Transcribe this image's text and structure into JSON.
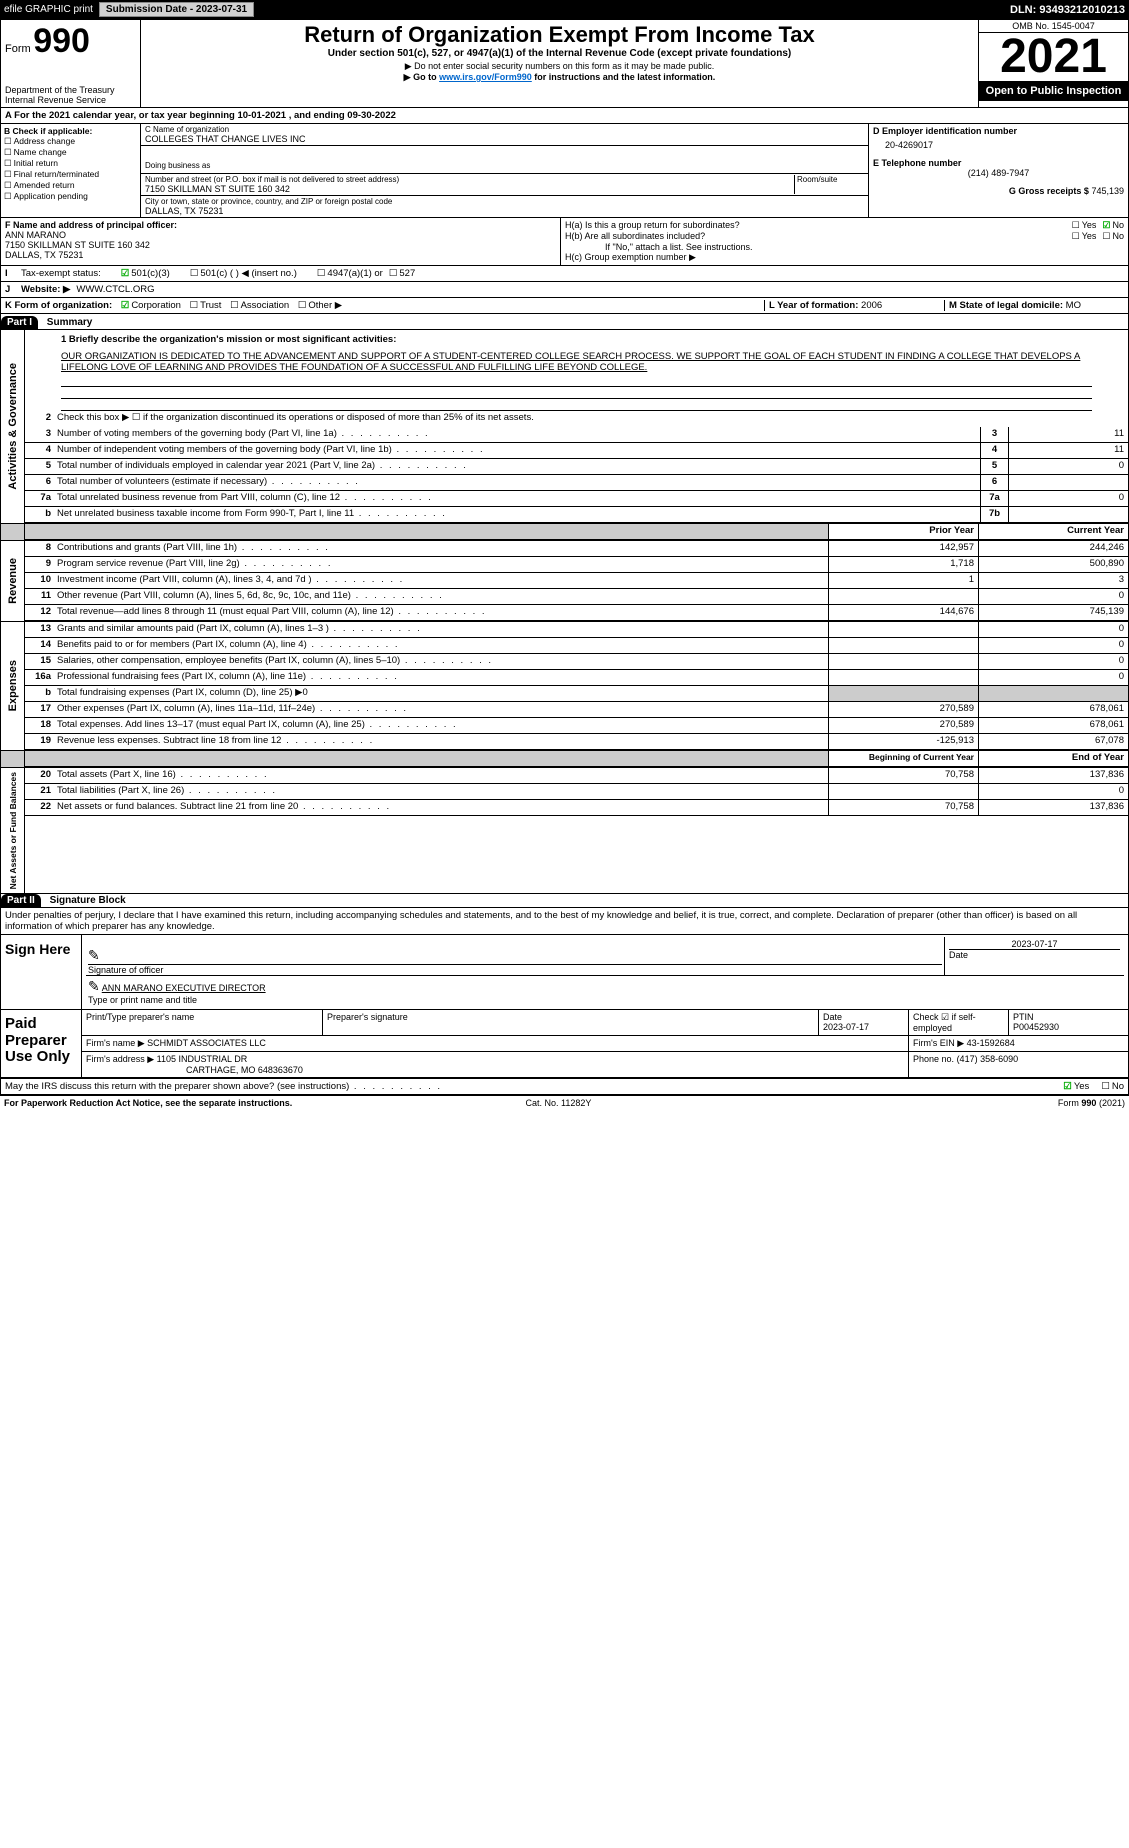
{
  "topbar": {
    "efile": "efile GRAPHIC print",
    "submit": "Submission Date - 2023-07-31",
    "dln": "DLN: 93493212010213"
  },
  "head": {
    "form": "990",
    "formprefix": "Form",
    "title": "Return of Organization Exempt From Income Tax",
    "sub1": "Under section 501(c), 527, or 4947(a)(1) of the Internal Revenue Code (except private foundations)",
    "sub2": "▶ Do not enter social security numbers on this form as it may be made public.",
    "sub3": "▶ Go to www.irs.gov/Form990 for instructions and the latest information.",
    "link": "www.irs.gov/Form990",
    "dept": "Department of the Treasury",
    "irs": "Internal Revenue Service",
    "omb": "OMB No. 1545-0047",
    "year": "2021",
    "open": "Open to Public Inspection"
  },
  "A": {
    "text": "For the 2021 calendar year, or tax year beginning 10-01-2021    , and ending 09-30-2022"
  },
  "B": {
    "hdr": "B Check if applicable:",
    "items": [
      "Address change",
      "Name change",
      "Initial return",
      "Final return/terminated",
      "Amended return",
      "Application pending"
    ]
  },
  "C": {
    "namehdr": "C Name of organization",
    "name": "COLLEGES THAT CHANGE LIVES INC",
    "dba": "Doing business as",
    "streethdr": "Number and street (or P.O. box if mail is not delivered to street address)",
    "room": "Room/suite",
    "street": "7150 SKILLMAN ST SUITE 160 342",
    "cityhdr": "City or town, state or province, country, and ZIP or foreign postal code",
    "city": "DALLAS, TX  75231"
  },
  "D": {
    "hdr": "D Employer identification number",
    "val": "20-4269017"
  },
  "E": {
    "hdr": "E Telephone number",
    "val": "(214) 489-7947"
  },
  "G": {
    "hdr": "G Gross receipts $",
    "val": "745,139"
  },
  "F": {
    "hdr": "F  Name and address of principal officer:",
    "name": "ANN MARANO",
    "street": "7150 SKILLMAN ST SUITE 160 342",
    "city": "DALLAS, TX  75231"
  },
  "H": {
    "a": "H(a)  Is this a group return for subordinates?",
    "ayes": "Yes",
    "ano": "No",
    "b": "H(b)  Are all subordinates included?",
    "bnote": "If \"No,\" attach a list. See instructions.",
    "c": "H(c)  Group exemption number ▶"
  },
  "I": {
    "hdr": "Tax-exempt status:",
    "o1": "501(c)(3)",
    "o2": "501(c) (  ) ◀ (insert no.)",
    "o3": "4947(a)(1) or",
    "o4": "527"
  },
  "J": {
    "hdr": "Website: ▶",
    "val": "WWW.CTCL.ORG"
  },
  "K": {
    "hdr": "K Form of organization:",
    "o1": "Corporation",
    "o2": "Trust",
    "o3": "Association",
    "o4": "Other ▶"
  },
  "L": {
    "hdr": "L Year of formation:",
    "val": "2006"
  },
  "M": {
    "hdr": "M State of legal domicile:",
    "val": "MO"
  },
  "partI": {
    "num": "Part I",
    "title": "Summary"
  },
  "mission": {
    "q": "1  Briefly describe the organization's mission or most significant activities:",
    "text": "OUR ORGANIZATION IS DEDICATED TO THE ADVANCEMENT AND SUPPORT OF A STUDENT-CENTERED COLLEGE SEARCH PROCESS. WE SUPPORT THE GOAL OF EACH STUDENT IN FINDING A COLLEGE THAT DEVELOPS A LIFELONG LOVE OF LEARNING AND PROVIDES THE FOUNDATION OF A SUCCESSFUL AND FULFILLING LIFE BEYOND COLLEGE."
  },
  "gov": {
    "side": "Activities & Governance",
    "l2": "Check this box ▶ ☐  if the organization discontinued its operations or disposed of more than 25% of its net assets.",
    "rows": [
      {
        "n": "3",
        "label": "Number of voting members of the governing body (Part VI, line 1a)",
        "box": "3",
        "val": "11"
      },
      {
        "n": "4",
        "label": "Number of independent voting members of the governing body (Part VI, line 1b)",
        "box": "4",
        "val": "11"
      },
      {
        "n": "5",
        "label": "Total number of individuals employed in calendar year 2021 (Part V, line 2a)",
        "box": "5",
        "val": "0"
      },
      {
        "n": "6",
        "label": "Total number of volunteers (estimate if necessary)",
        "box": "6",
        "val": ""
      },
      {
        "n": "7a",
        "label": "Total unrelated business revenue from Part VIII, column (C), line 12",
        "box": "7a",
        "val": "0"
      },
      {
        "n": "b",
        "label": "Net unrelated business taxable income from Form 990-T, Part I, line 11",
        "box": "7b",
        "val": ""
      }
    ]
  },
  "colhdr": {
    "prior": "Prior Year",
    "current": "Current Year"
  },
  "rev": {
    "side": "Revenue",
    "rows": [
      {
        "n": "8",
        "label": "Contributions and grants (Part VIII, line 1h)",
        "p": "142,957",
        "c": "244,246"
      },
      {
        "n": "9",
        "label": "Program service revenue (Part VIII, line 2g)",
        "p": "1,718",
        "c": "500,890"
      },
      {
        "n": "10",
        "label": "Investment income (Part VIII, column (A), lines 3, 4, and 7d )",
        "p": "1",
        "c": "3"
      },
      {
        "n": "11",
        "label": "Other revenue (Part VIII, column (A), lines 5, 6d, 8c, 9c, 10c, and 11e)",
        "p": "",
        "c": "0"
      },
      {
        "n": "12",
        "label": "Total revenue—add lines 8 through 11 (must equal Part VIII, column (A), line 12)",
        "p": "144,676",
        "c": "745,139"
      }
    ]
  },
  "exp": {
    "side": "Expenses",
    "rows": [
      {
        "n": "13",
        "label": "Grants and similar amounts paid (Part IX, column (A), lines 1–3 )",
        "p": "",
        "c": "0"
      },
      {
        "n": "14",
        "label": "Benefits paid to or for members (Part IX, column (A), line 4)",
        "p": "",
        "c": "0"
      },
      {
        "n": "15",
        "label": "Salaries, other compensation, employee benefits (Part IX, column (A), lines 5–10)",
        "p": "",
        "c": "0"
      },
      {
        "n": "16a",
        "label": "Professional fundraising fees (Part IX, column (A), line 11e)",
        "p": "",
        "c": "0"
      },
      {
        "n": "b",
        "label": "Total fundraising expenses (Part IX, column (D), line 25) ▶0",
        "p": null,
        "c": null
      },
      {
        "n": "17",
        "label": "Other expenses (Part IX, column (A), lines 11a–11d, 11f–24e)",
        "p": "270,589",
        "c": "678,061"
      },
      {
        "n": "18",
        "label": "Total expenses. Add lines 13–17 (must equal Part IX, column (A), line 25)",
        "p": "270,589",
        "c": "678,061"
      },
      {
        "n": "19",
        "label": "Revenue less expenses. Subtract line 18 from line 12",
        "p": "-125,913",
        "c": "67,078"
      }
    ]
  },
  "net": {
    "side": "Net Assets or Fund Balances",
    "hdr": {
      "p": "Beginning of Current Year",
      "c": "End of Year"
    },
    "rows": [
      {
        "n": "20",
        "label": "Total assets (Part X, line 16)",
        "p": "70,758",
        "c": "137,836"
      },
      {
        "n": "21",
        "label": "Total liabilities (Part X, line 26)",
        "p": "",
        "c": "0"
      },
      {
        "n": "22",
        "label": "Net assets or fund balances. Subtract line 21 from line 20",
        "p": "70,758",
        "c": "137,836"
      }
    ]
  },
  "partII": {
    "num": "Part II",
    "title": "Signature Block"
  },
  "sig": {
    "perjury": "Under penalties of perjury, I declare that I have examined this return, including accompanying schedules and statements, and to the best of my knowledge and belief, it is true, correct, and complete. Declaration of preparer (other than officer) is based on all information of which preparer has any knowledge.",
    "sign": "Sign Here",
    "sigoff": "Signature of officer",
    "date": "Date",
    "sigdate": "2023-07-17",
    "name": "ANN MARANO  EXECUTIVE DIRECTOR",
    "nametype": "Type or print name and title"
  },
  "prep": {
    "lbl": "Paid Preparer Use Only",
    "h": {
      "c1": "Print/Type preparer's name",
      "c2": "Preparer's signature",
      "c3": "Date",
      "c4": "Check ☑ if self-employed",
      "c5": "PTIN"
    },
    "r1": {
      "c3": "2023-07-17",
      "c5": "P00452930"
    },
    "r2": {
      "l": "Firm's name    ▶",
      "v": "SCHMIDT ASSOCIATES LLC",
      "einl": "Firm's EIN ▶",
      "ein": "43-1592684"
    },
    "r3": {
      "l": "Firm's address ▶",
      "v1": "1105 INDUSTRIAL DR",
      "v2": "CARTHAGE, MO  648363670",
      "phl": "Phone no.",
      "ph": "(417) 358-6090"
    }
  },
  "discuss": {
    "q": "May the IRS discuss this return with the preparer shown above? (see instructions)",
    "yes": "Yes",
    "no": "No"
  },
  "footer": {
    "l": "For Paperwork Reduction Act Notice, see the separate instructions.",
    "c": "Cat. No. 11282Y",
    "r": "Form 990 (2021)"
  }
}
